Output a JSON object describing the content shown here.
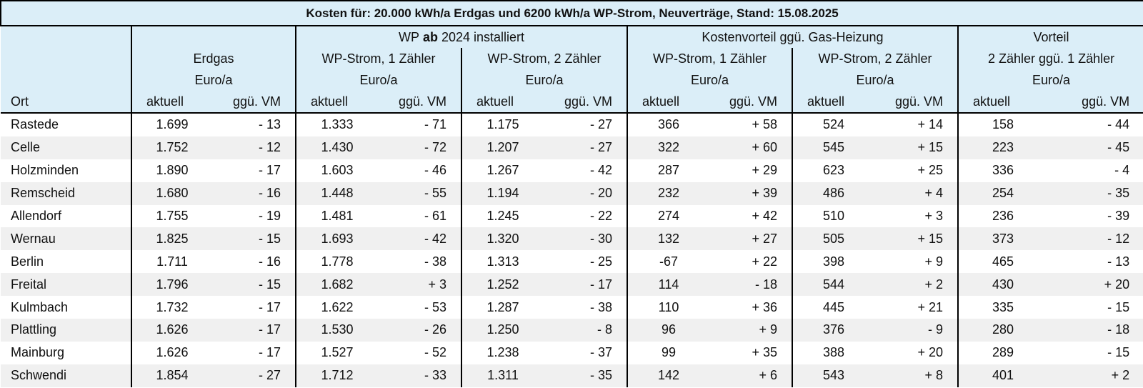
{
  "title": "Kosten für: 20.000 kWh/a Erdgas und 6200 kWh/a WP-Strom, Neuverträge, Stand: 15.08.2025",
  "header": {
    "wp_group": {
      "before": "WP",
      "bold": "ab",
      "after": "2024 installiert"
    },
    "kostenvorteil": "Kostenvorteil ggü. Gas-Heizung",
    "vorteil": "Vorteil",
    "groups": [
      "Erdgas",
      "WP-Strom, 1 Zähler",
      "WP-Strom, 2 Zähler",
      "WP-Strom, 1 Zähler",
      "WP-Strom, 2 Zähler",
      "2 Zähler ggü. 1 Zähler"
    ],
    "units": [
      "Euro/a",
      "Euro/a",
      "Euro/a",
      "Euro/a",
      "Euro/a",
      "Euro/a"
    ],
    "ort": "Ort",
    "columns": [
      "aktuell",
      "ggü. VM",
      "aktuell",
      "ggü. VM",
      "aktuell",
      "ggü. VM",
      "aktuell",
      "ggü. VM",
      "aktuell",
      "ggü. VM",
      "aktuell",
      "ggü. VM"
    ]
  },
  "rows": [
    {
      "ort": "Rastede",
      "cells": [
        "1.699",
        "- 13",
        "1.333",
        "- 71",
        "1.175",
        "- 27",
        "366",
        "+ 58",
        "524",
        "+ 14",
        "158",
        "- 44"
      ]
    },
    {
      "ort": "Celle",
      "cells": [
        "1.752",
        "- 12",
        "1.430",
        "- 72",
        "1.207",
        "- 27",
        "322",
        "+ 60",
        "545",
        "+ 15",
        "223",
        "- 45"
      ]
    },
    {
      "ort": "Holzminden",
      "cells": [
        "1.890",
        "- 17",
        "1.603",
        "- 46",
        "1.267",
        "- 42",
        "287",
        "+ 29",
        "623",
        "+ 25",
        "336",
        "- 4"
      ]
    },
    {
      "ort": "Remscheid",
      "cells": [
        "1.680",
        "- 16",
        "1.448",
        "- 55",
        "1.194",
        "- 20",
        "232",
        "+ 39",
        "486",
        "+ 4",
        "254",
        "- 35"
      ]
    },
    {
      "ort": "Allendorf",
      "cells": [
        "1.755",
        "- 19",
        "1.481",
        "- 61",
        "1.245",
        "- 22",
        "274",
        "+ 42",
        "510",
        "+ 3",
        "236",
        "- 39"
      ]
    },
    {
      "ort": "Wernau",
      "cells": [
        "1.825",
        "- 15",
        "1.693",
        "- 42",
        "1.320",
        "- 30",
        "132",
        "+ 27",
        "505",
        "+ 15",
        "373",
        "- 12"
      ]
    },
    {
      "ort": "Berlin",
      "cells": [
        "1.711",
        "- 16",
        "1.778",
        "- 38",
        "1.313",
        "- 25",
        "-67",
        "+ 22",
        "398",
        "+ 9",
        "465",
        "- 13"
      ]
    },
    {
      "ort": "Freital",
      "cells": [
        "1.796",
        "- 15",
        "1.682",
        "+ 3",
        "1.252",
        "- 17",
        "114",
        "- 18",
        "544",
        "+ 2",
        "430",
        "+ 20"
      ]
    },
    {
      "ort": "Kulmbach",
      "cells": [
        "1.732",
        "- 17",
        "1.622",
        "- 53",
        "1.287",
        "- 38",
        "110",
        "+ 36",
        "445",
        "+ 21",
        "335",
        "- 15"
      ]
    },
    {
      "ort": "Plattling",
      "cells": [
        "1.626",
        "- 17",
        "1.530",
        "- 26",
        "1.250",
        "- 8",
        "96",
        "+ 9",
        "376",
        "- 9",
        "280",
        "- 18"
      ]
    },
    {
      "ort": "Mainburg",
      "cells": [
        "1.626",
        "- 17",
        "1.527",
        "- 52",
        "1.238",
        "- 37",
        "99",
        "+ 35",
        "388",
        "+ 20",
        "289",
        "- 15"
      ]
    },
    {
      "ort": "Schwendi",
      "cells": [
        "1.854",
        "- 27",
        "1.712",
        "- 33",
        "1.311",
        "- 35",
        "142",
        "+ 6",
        "543",
        "+ 8",
        "401",
        "+ 2"
      ]
    }
  ]
}
